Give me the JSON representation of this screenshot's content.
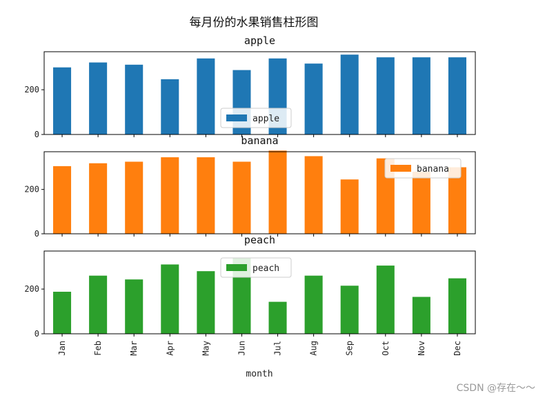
{
  "chart_data": {
    "type": "bar",
    "title": "每月份的水果销售柱形图",
    "xlabel": "month",
    "categories": [
      "Jan",
      "Feb",
      "Mar",
      "Apr",
      "May",
      "Jun",
      "Jul",
      "Aug",
      "Sep",
      "Oct",
      "Nov",
      "Dec"
    ],
    "ylim": [
      0,
      370
    ],
    "yticks": [
      0,
      200
    ],
    "subplots": [
      {
        "name": "apple",
        "title": "apple",
        "color": "#1f77b4",
        "legend": "apple",
        "legend_loc": "lower center",
        "values": [
          300,
          322,
          312,
          247,
          340,
          288,
          340,
          317,
          357,
          345,
          345,
          345
        ]
      },
      {
        "name": "banana",
        "title": "banana",
        "color": "#ff7f0e",
        "legend": "banana",
        "legend_loc": "upper right",
        "values": [
          305,
          318,
          325,
          345,
          345,
          325,
          375,
          350,
          245,
          340,
          280,
          300
        ]
      },
      {
        "name": "peach",
        "title": "peach",
        "color": "#2ca02c",
        "legend": "peach",
        "legend_loc": "upper center",
        "values": [
          188,
          260,
          243,
          310,
          280,
          340,
          143,
          260,
          215,
          305,
          165,
          248
        ]
      }
    ]
  },
  "watermark": "CSDN @存在～～"
}
